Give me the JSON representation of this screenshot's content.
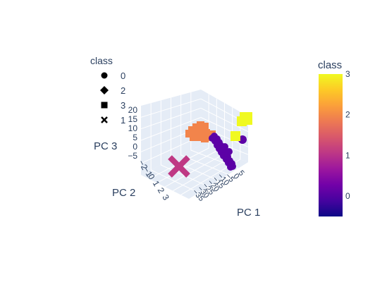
{
  "chart_data": {
    "type": "scatter",
    "subtype": "scatter3d",
    "axes": {
      "x": {
        "title": "PC 1",
        "tick_labels": [
          "5",
          "0",
          "−5",
          "−10",
          "−15",
          "−20",
          "−25",
          "−30",
          "−35"
        ]
      },
      "y": {
        "title": "PC 2",
        "tick_labels": [
          "−2",
          "−1",
          "0",
          "1",
          "2",
          "3"
        ]
      },
      "z": {
        "title": "PC 3",
        "tick_labels": [
          "−5",
          "0",
          "5",
          "10",
          "15",
          "20"
        ]
      }
    },
    "grid": true,
    "legend": {
      "title": "class",
      "placement": "top-left",
      "entries": [
        {
          "name": "0",
          "symbol": "circle"
        },
        {
          "name": "2",
          "symbol": "diamond"
        },
        {
          "name": "3",
          "symbol": "square"
        },
        {
          "name": "1",
          "symbol": "x"
        }
      ]
    },
    "colorbar": {
      "title": "class",
      "placement": "right",
      "tick_labels": [
        "0",
        "1",
        "2",
        "3"
      ],
      "range": [
        -0.5,
        3
      ],
      "colorscale": [
        "#0d0887",
        "#46039f",
        "#7201a8",
        "#9c179e",
        "#bd3786",
        "#d8576b",
        "#ed7953",
        "#fb9f3a",
        "#fdca26",
        "#f0f921"
      ]
    },
    "series": [
      {
        "name": "0",
        "class_value": 0,
        "symbol": "circle",
        "color": "#5c01a6"
      },
      {
        "name": "2",
        "class_value": 2,
        "symbol": "diamond",
        "color": "#f2844b"
      },
      {
        "name": "3",
        "class_value": 3,
        "symbol": "square",
        "color": "#f0f921"
      },
      {
        "name": "1",
        "class_value": 1,
        "symbol": "x",
        "color": "#bf3984"
      }
    ]
  }
}
